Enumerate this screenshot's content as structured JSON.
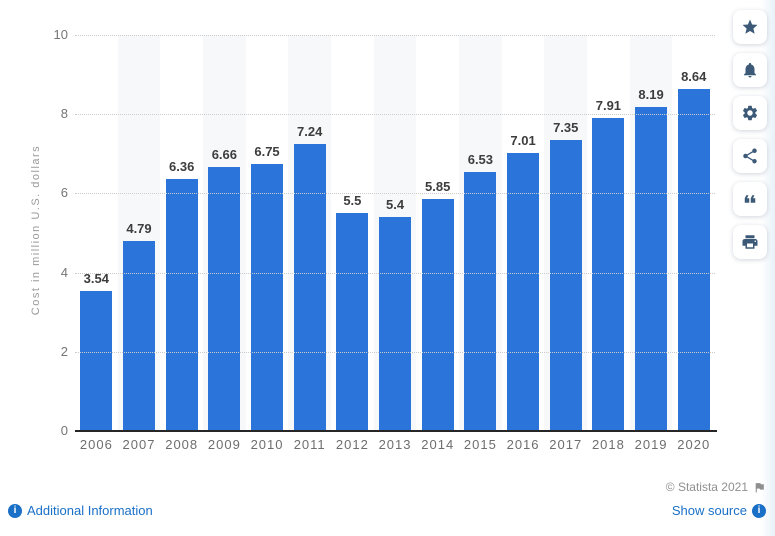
{
  "chart_data": {
    "type": "bar",
    "title": "",
    "categories": [
      "2006",
      "2007",
      "2008",
      "2009",
      "2010",
      "2011",
      "2012",
      "2013",
      "2014",
      "2015",
      "2016",
      "2017",
      "2018",
      "2019",
      "2020"
    ],
    "values": [
      3.54,
      4.79,
      6.36,
      6.66,
      6.75,
      7.24,
      5.5,
      5.4,
      5.85,
      6.53,
      7.01,
      7.35,
      7.91,
      8.19,
      8.64
    ],
    "xlabel": "",
    "ylabel": "Cost in million U.S. dollars",
    "ylim": [
      0,
      10
    ],
    "yticks": [
      0,
      2,
      4,
      6,
      8,
      10
    ],
    "grid": "horizontal dotted lines at y ticks",
    "legend": "none",
    "bar_color": "#2b74d9",
    "stripe_color": "#f7f8f9",
    "label_color": "#3d3d3d",
    "axis_text_color": "#757575"
  },
  "toolbar": {
    "buttons": [
      {
        "name": "favorite",
        "icon": "star-icon"
      },
      {
        "name": "notifications",
        "icon": "bell-icon"
      },
      {
        "name": "settings",
        "icon": "gear-icon"
      },
      {
        "name": "share",
        "icon": "share-icon"
      },
      {
        "name": "cite",
        "icon": "quote-icon"
      },
      {
        "name": "print",
        "icon": "print-icon"
      }
    ]
  },
  "footer": {
    "copyright": "© Statista 2021",
    "additional_information_label": "Additional Information",
    "show_source_label": "Show source"
  },
  "colors": {
    "bar": "#2b74d9",
    "link": "#1a70c7",
    "copyright_text": "#8f8f8f",
    "toolbar_icon": "#3c5a78"
  }
}
